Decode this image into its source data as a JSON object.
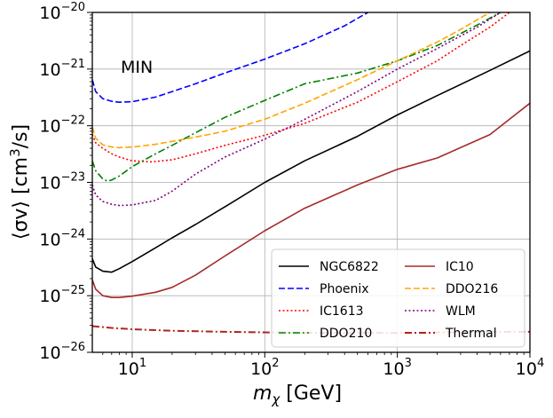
{
  "chart_data": {
    "type": "line",
    "title": "",
    "xlabel": {
      "main": "m",
      "sub": "χ",
      "unit": " [GeV]"
    },
    "ylabel": {
      "prefix": "⟨σv⟩ [cm",
      "sup": "3",
      "suffix": "/s]"
    },
    "xscale": "log",
    "yscale": "log",
    "xlim": [
      5,
      10000
    ],
    "ylim": [
      1e-26,
      1e-20
    ],
    "grid": true,
    "annotation": "MIN",
    "legend_position": "lower-right",
    "x_ticks": [
      {
        "value": 10,
        "base": "10",
        "exp": "1"
      },
      {
        "value": 100,
        "base": "10",
        "exp": "2"
      },
      {
        "value": 1000,
        "base": "10",
        "exp": "3"
      },
      {
        "value": 10000,
        "base": "10",
        "exp": "4"
      }
    ],
    "y_ticks": [
      {
        "value": 1e-26,
        "base": "10",
        "exp": "−26"
      },
      {
        "value": 1e-25,
        "base": "10",
        "exp": "−25"
      },
      {
        "value": 1e-24,
        "base": "10",
        "exp": "−24"
      },
      {
        "value": 1e-23,
        "base": "10",
        "exp": "−23"
      },
      {
        "value": 1e-22,
        "base": "10",
        "exp": "−22"
      },
      {
        "value": 1e-21,
        "base": "10",
        "exp": "−21"
      },
      {
        "value": 1e-20,
        "base": "10",
        "exp": "−20"
      }
    ],
    "series": [
      {
        "name": "NGC6822",
        "color": "#000000",
        "dash": "solid",
        "points": [
          [
            5,
            4.5e-25
          ],
          [
            5.3,
            3.2e-25
          ],
          [
            6,
            2.7e-25
          ],
          [
            7,
            2.6e-25
          ],
          [
            8,
            3e-25
          ],
          [
            10,
            4e-25
          ],
          [
            15,
            7e-25
          ],
          [
            20,
            1.05e-24
          ],
          [
            30,
            1.8e-24
          ],
          [
            50,
            3.7e-24
          ],
          [
            100,
            1e-23
          ],
          [
            200,
            2.4e-23
          ],
          [
            500,
            6.5e-23
          ],
          [
            1000,
            1.55e-22
          ],
          [
            2000,
            3.4e-22
          ],
          [
            5000,
            9.5e-22
          ],
          [
            10000,
            2.1e-21
          ]
        ]
      },
      {
        "name": "Phoenix",
        "color": "#0000ff",
        "dash": "dashed",
        "points": [
          [
            5,
            6.5e-22
          ],
          [
            5.3,
            4e-22
          ],
          [
            6,
            3e-22
          ],
          [
            7,
            2.7e-22
          ],
          [
            8,
            2.6e-22
          ],
          [
            10,
            2.65e-22
          ],
          [
            15,
            3.2e-22
          ],
          [
            20,
            4e-22
          ],
          [
            30,
            5.5e-22
          ],
          [
            50,
            8.5e-22
          ],
          [
            100,
            1.5e-21
          ],
          [
            200,
            2.8e-21
          ],
          [
            400,
            5.8e-21
          ],
          [
            600,
            1e-20
          ]
        ]
      },
      {
        "name": "IC1613",
        "color": "#ff0000",
        "dash": "dotted",
        "points": [
          [
            5,
            7e-23
          ],
          [
            5.3,
            5e-23
          ],
          [
            6,
            4e-23
          ],
          [
            7,
            3.2e-23
          ],
          [
            8,
            2.8e-23
          ],
          [
            10,
            2.4e-23
          ],
          [
            14,
            2.3e-23
          ],
          [
            20,
            2.5e-23
          ],
          [
            30,
            3.2e-23
          ],
          [
            50,
            4.5e-23
          ],
          [
            100,
            6.8e-23
          ],
          [
            200,
            1.1e-22
          ],
          [
            500,
            2.6e-22
          ],
          [
            1000,
            6e-22
          ],
          [
            2000,
            1.4e-21
          ],
          [
            3000,
            2.6e-21
          ],
          [
            5000,
            5.5e-21
          ],
          [
            7000,
            1e-20
          ]
        ]
      },
      {
        "name": "DDO210",
        "color": "#008000",
        "dash": "dashdot",
        "points": [
          [
            5,
            2.4e-23
          ],
          [
            5.3,
            1.6e-23
          ],
          [
            6,
            1.15e-23
          ],
          [
            6.5,
            1.05e-23
          ],
          [
            7,
            1.1e-23
          ],
          [
            8,
            1.3e-23
          ],
          [
            10,
            1.9e-23
          ],
          [
            15,
            3.2e-23
          ],
          [
            20,
            4.5e-23
          ],
          [
            30,
            7.5e-23
          ],
          [
            50,
            1.4e-22
          ],
          [
            100,
            2.8e-22
          ],
          [
            200,
            5.5e-22
          ],
          [
            500,
            8.5e-22
          ],
          [
            1000,
            1.4e-21
          ],
          [
            2000,
            2.6e-21
          ],
          [
            4000,
            6e-21
          ],
          [
            6000,
            1e-20
          ]
        ]
      },
      {
        "name": "IC10",
        "color": "#a52a2a",
        "dash": "solid",
        "points": [
          [
            5,
            1.9e-25
          ],
          [
            5.3,
            1.3e-25
          ],
          [
            6,
            1e-25
          ],
          [
            7,
            9.3e-26
          ],
          [
            8,
            9.3e-26
          ],
          [
            10,
            9.8e-26
          ],
          [
            15,
            1.15e-25
          ],
          [
            20,
            1.4e-25
          ],
          [
            30,
            2.3e-25
          ],
          [
            50,
            5e-25
          ],
          [
            100,
            1.4e-24
          ],
          [
            200,
            3.5e-24
          ],
          [
            500,
            9e-24
          ],
          [
            1000,
            1.7e-23
          ],
          [
            2000,
            2.7e-23
          ],
          [
            5000,
            7e-23
          ],
          [
            10000,
            2.5e-22
          ]
        ]
      },
      {
        "name": "DDO216",
        "color": "#ffa500",
        "dash": "dashed",
        "points": [
          [
            5,
            9.5e-23
          ],
          [
            5.3,
            6e-23
          ],
          [
            6,
            4.6e-23
          ],
          [
            7,
            4.2e-23
          ],
          [
            8,
            4.1e-23
          ],
          [
            10,
            4.2e-23
          ],
          [
            15,
            4.7e-23
          ],
          [
            20,
            5.3e-23
          ],
          [
            30,
            6.3e-23
          ],
          [
            50,
            8e-23
          ],
          [
            100,
            1.3e-22
          ],
          [
            200,
            2.5e-22
          ],
          [
            500,
            6.5e-22
          ],
          [
            1000,
            1.4e-21
          ],
          [
            2000,
            3e-21
          ],
          [
            3000,
            5e-21
          ],
          [
            5000,
            1e-20
          ]
        ]
      },
      {
        "name": "WLM",
        "color": "#800080",
        "dash": "dotted",
        "points": [
          [
            5,
            9e-24
          ],
          [
            5.3,
            6e-24
          ],
          [
            6,
            4.6e-24
          ],
          [
            7,
            4.1e-24
          ],
          [
            8,
            3.9e-24
          ],
          [
            10,
            4e-24
          ],
          [
            15,
            4.8e-24
          ],
          [
            20,
            7e-24
          ],
          [
            30,
            1.4e-23
          ],
          [
            50,
            2.8e-23
          ],
          [
            100,
            5.8e-23
          ],
          [
            200,
            1.3e-22
          ],
          [
            500,
            4e-22
          ],
          [
            1000,
            1e-21
          ],
          [
            2000,
            2.3e-21
          ],
          [
            4000,
            5.5e-21
          ],
          [
            6000,
            1e-20
          ]
        ]
      },
      {
        "name": "Thermal",
        "color": "#b22222",
        "dash": "dashdot",
        "points": [
          [
            5,
            2.9e-26
          ],
          [
            7,
            2.7e-26
          ],
          [
            10,
            2.55e-26
          ],
          [
            20,
            2.4e-26
          ],
          [
            50,
            2.3e-26
          ],
          [
            100,
            2.25e-26
          ],
          [
            200,
            2.2e-26
          ],
          [
            500,
            2.2e-26
          ],
          [
            1000,
            2.2e-26
          ],
          [
            2000,
            2.25e-26
          ],
          [
            5000,
            2.3e-26
          ],
          [
            10000,
            2.3e-26
          ]
        ]
      }
    ],
    "legend_order": [
      "NGC6822",
      "IC10",
      "Phoenix",
      "DDO216",
      "IC1613",
      "WLM",
      "DDO210",
      "Thermal"
    ]
  }
}
